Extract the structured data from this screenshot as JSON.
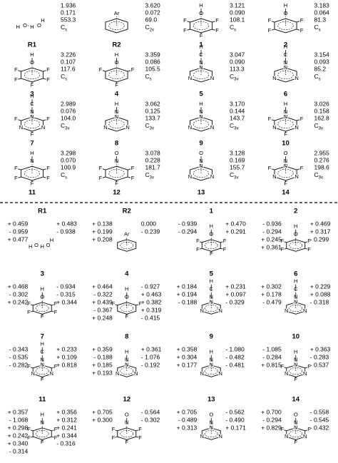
{
  "top_panel": {
    "value_colors": [
      "#3a9a2a",
      "#2a4fd0",
      "#e0261b"
    ],
    "molecules": [
      {
        "label": "R1",
        "values": [
          "1.936",
          "0.171",
          "553.3"
        ],
        "point_group": "C",
        "point_group_sub": "s",
        "ring": null,
        "chain": [
          "H",
          "O",
          "H",
          "O",
          "H"
        ],
        "above": []
      },
      {
        "label": "R2",
        "values": [
          "3.620",
          "0.072",
          "69.0"
        ],
        "point_group": "C",
        "point_group_sub": "2v",
        "ring": [
          null,
          null,
          null,
          null,
          null,
          null
        ],
        "above": [
          "Ar"
        ]
      },
      {
        "label": "1",
        "values": [
          "3.121",
          "0.090",
          "108.1"
        ],
        "point_group": "C",
        "point_group_sub": "s",
        "ring": [
          null,
          "F",
          "F",
          "F",
          "F",
          "F"
        ],
        "above": [
          "O",
          "H"
        ]
      },
      {
        "label": "2",
        "values": [
          "3.183",
          "0.064",
          "81.3"
        ],
        "point_group": "C",
        "point_group_sub": "s",
        "ring": [
          null,
          "F",
          "F",
          null,
          "F",
          "F"
        ],
        "above": [
          "O",
          "H"
        ]
      },
      {
        "label": "3",
        "values": [
          "3.226",
          "0.107",
          "117.6"
        ],
        "point_group": "C",
        "point_group_sub": "s",
        "ring": [
          null,
          "F",
          "F",
          "F",
          "F",
          "F"
        ],
        "above": [
          "O",
          "H"
        ]
      },
      {
        "label": "4",
        "values": [
          "3.359",
          "0.086",
          "105.5"
        ],
        "point_group": "C",
        "point_group_sub": "s",
        "ring": [
          null,
          "F",
          null,
          "F",
          null,
          "F"
        ],
        "above": [
          "O",
          "H"
        ]
      },
      {
        "label": "5",
        "values": [
          "3.047",
          "0.090",
          "113.3"
        ],
        "point_group": "C",
        "point_group_sub": "3v",
        "ring": [
          "N",
          null,
          "N",
          null,
          "N",
          null
        ],
        "above": [
          "N",
          "C",
          "H"
        ]
      },
      {
        "label": "6",
        "values": [
          "3.154",
          "0.093",
          "85.2"
        ],
        "point_group": "C",
        "point_group_sub": "s",
        "ring": [
          "N",
          null,
          "N",
          null,
          "N",
          null
        ],
        "above": [
          "N",
          "C",
          "H"
        ]
      },
      {
        "label": "7",
        "values": [
          "2.989",
          "0.076",
          "104.0"
        ],
        "point_group": "C",
        "point_group_sub": "3v",
        "ring": [
          "N",
          "F",
          "N",
          "F",
          "N",
          "F"
        ],
        "above": [
          "N",
          "C",
          "H"
        ]
      },
      {
        "label": "8",
        "values": [
          "3.062",
          "0.125",
          "133.7"
        ],
        "point_group": "C",
        "point_group_sub": "3v",
        "ring": [
          "N",
          null,
          "N",
          null,
          "N",
          null
        ],
        "above": [
          "N",
          "H"
        ]
      },
      {
        "label": "9",
        "values": [
          "3.170",
          "0.144",
          "143.7"
        ],
        "point_group": "C",
        "point_group_sub": "3v",
        "ring": [
          "N",
          null,
          "N",
          null,
          "N",
          null
        ],
        "above": [
          "N",
          "H"
        ]
      },
      {
        "label": "10",
        "values": [
          "3.026",
          "0.158",
          "162.8"
        ],
        "point_group": "C",
        "point_group_sub": "3v",
        "ring": [
          "N",
          "F",
          "N",
          "F",
          "N",
          "F"
        ],
        "above": [
          "N",
          "H"
        ]
      },
      {
        "label": "11",
        "values": [
          "3.298",
          "0.070",
          "100.9"
        ],
        "point_group": "C",
        "point_group_sub": "s",
        "ring": [
          null,
          "F",
          "F",
          "F",
          "F",
          "F"
        ],
        "above": [
          "N",
          "H"
        ]
      },
      {
        "label": "12",
        "values": [
          "3.078",
          "0.228",
          "181.7"
        ],
        "point_group": "C",
        "point_group_sub": "3v",
        "ring": [
          null,
          "F",
          "F",
          "F",
          "F",
          "F"
        ],
        "above": [
          "N",
          "O"
        ]
      },
      {
        "label": "13",
        "values": [
          "3.128",
          "0.169",
          "155.7"
        ],
        "point_group": "C",
        "point_group_sub": "3v",
        "ring": [
          "N",
          null,
          "N",
          null,
          "N",
          null
        ],
        "above": [
          "N",
          "O"
        ]
      },
      {
        "label": "14",
        "values": [
          "2.955",
          "0.276",
          "198.6"
        ],
        "point_group": "C",
        "point_group_sub": "3v",
        "ring": [
          "N",
          "F",
          "N",
          "F",
          "N",
          "F"
        ],
        "above": [
          "N",
          "O"
        ]
      }
    ]
  },
  "bottom_panel": {
    "molecules": [
      {
        "label": "R1",
        "charges": [
          {
            "text": "+ 0.459",
            "color": "#000000"
          },
          {
            "text": "+ 0.483",
            "color": "#000000"
          },
          {
            "text": "- 0.959",
            "color": "#e0261b"
          },
          {
            "text": "- 0.938",
            "color": "#e0261b"
          },
          {
            "text": "+ 0.477",
            "color": "#000000"
          }
        ]
      },
      {
        "label": "R2",
        "charges": [
          {
            "text": "+ 0.138",
            "color": "#3a9a2a"
          },
          {
            "text": "0.000",
            "color": "#d9661a"
          },
          {
            "text": "+ 0.199",
            "color": "#000000"
          },
          {
            "text": "- 0.239",
            "color": "#3a9a2a"
          },
          {
            "text": "+ 0.208",
            "color": "#000000"
          }
        ]
      },
      {
        "label": "1",
        "charges": [
          {
            "text": "- 0.939",
            "color": "#e0261b"
          },
          {
            "text": "+ 0.470",
            "color": "#000000"
          },
          {
            "text": "- 0.294",
            "color": "#3b8fd4"
          },
          {
            "text": "+ 0.291",
            "color": "#3a9a2a"
          }
        ]
      },
      {
        "label": "2",
        "charges": [
          {
            "text": "- 0.936",
            "color": "#e0261b"
          },
          {
            "text": "+ 0.469",
            "color": "#000000"
          },
          {
            "text": "- 0.294",
            "color": "#3b8fd4"
          },
          {
            "text": "+ 0.317",
            "color": "#3a9a2a"
          },
          {
            "text": "+ 0.245",
            "color": "#000000"
          },
          {
            "text": "- 0.299",
            "color": "#3b8fd4"
          },
          {
            "text": "+ 0.361",
            "color": "#3a9a2a"
          }
        ]
      },
      {
        "label": "3",
        "charges": [
          {
            "text": "+ 0.468",
            "color": "#000000"
          },
          {
            "text": "- 0.934",
            "color": "#e0261b"
          },
          {
            "text": "- 0.302",
            "color": "#3a9a2a"
          },
          {
            "text": "- 0.315",
            "color": "#3b8fd4"
          },
          {
            "text": "+ 0.242",
            "color": "#000000"
          },
          {
            "text": "+ 0.344",
            "color": "#3a9a2a"
          }
        ]
      },
      {
        "label": "4",
        "charges": [
          {
            "text": "+ 0.464",
            "color": "#000000"
          },
          {
            "text": "- 0.927",
            "color": "#e0261b"
          },
          {
            "text": "- 0.322",
            "color": "#3b8fd4"
          },
          {
            "text": "+ 0.463",
            "color": "#000000"
          },
          {
            "text": "+ 0.439",
            "color": "#3a9a2a"
          },
          {
            "text": "+ 0.382",
            "color": "#3a9a2a"
          },
          {
            "text": "- 0.367",
            "color": "#3a9a2a"
          },
          {
            "text": "+ 0.319",
            "color": "#3a9a2a"
          },
          {
            "text": "+ 0.248",
            "color": "#000000"
          },
          {
            "text": "- 0.415",
            "color": "#3b8fd4"
          }
        ]
      },
      {
        "label": "5",
        "charges": [
          {
            "text": "+ 0.184",
            "color": "#3a9a2a"
          },
          {
            "text": "+ 0.231",
            "color": "#000000"
          },
          {
            "text": "+ 0.194",
            "color": "#000000"
          },
          {
            "text": "+ 0.097",
            "color": "#3a9a2a"
          },
          {
            "text": "- 0.188",
            "color": "#2a4fd0"
          },
          {
            "text": "- 0.329",
            "color": "#2a4fd0"
          }
        ]
      },
      {
        "label": "6",
        "charges": [
          {
            "text": "+ 0.302",
            "color": "#3a9a2a"
          },
          {
            "text": "+ 0.229",
            "color": "#000000"
          },
          {
            "text": "+ 0.178",
            "color": "#000000"
          },
          {
            "text": "+ 0.088",
            "color": "#3a9a2a"
          },
          {
            "text": "- 0.479",
            "color": "#2a4fd0"
          },
          {
            "text": "- 0.318",
            "color": "#2a4fd0"
          }
        ]
      },
      {
        "label": "7",
        "charges": [
          {
            "text": "- 0.343",
            "color": "#2a4fd0"
          },
          {
            "text": "+ 0.233",
            "color": "#000000"
          },
          {
            "text": "- 0.535",
            "color": "#2a4fd0"
          },
          {
            "text": "+ 0.109",
            "color": "#3a9a2a"
          },
          {
            "text": "- 0.282",
            "color": "#3b8fd4"
          },
          {
            "text": "+ 0.818",
            "color": "#3a9a2a"
          }
        ]
      },
      {
        "label": "8",
        "charges": [
          {
            "text": "+ 0.359",
            "color": "#000000"
          },
          {
            "text": "+ 0.361",
            "color": "#000000"
          },
          {
            "text": "- 0.188",
            "color": "#2a4fd0"
          },
          {
            "text": "- 1.076",
            "color": "#2a4fd0"
          },
          {
            "text": "+ 0.185",
            "color": "#3a9a2a"
          },
          {
            "text": "- 0.192",
            "color": "#2a4fd0"
          },
          {
            "text": "+ 0.193",
            "color": "#000000"
          }
        ]
      },
      {
        "label": "9",
        "charges": [
          {
            "text": "+ 0.358",
            "color": "#000000"
          },
          {
            "text": "- 1.080",
            "color": "#2a4fd0"
          },
          {
            "text": "+ 0.304",
            "color": "#3a9a2a"
          },
          {
            "text": "- 0.482",
            "color": "#2a4fd0"
          },
          {
            "text": "+ 0.177",
            "color": "#000000"
          },
          {
            "text": "- 0.481",
            "color": "#2a4fd0"
          }
        ]
      },
      {
        "label": "10",
        "charges": [
          {
            "text": "- 1.085",
            "color": "#2a4fd0"
          },
          {
            "text": "+ 0.363",
            "color": "#000000"
          },
          {
            "text": "- 0.284",
            "color": "#3b8fd4"
          },
          {
            "text": "- 0.283",
            "color": "#3b8fd4"
          },
          {
            "text": "+ 0.815",
            "color": "#3a9a2a"
          },
          {
            "text": "- 0.537",
            "color": "#2a4fd0"
          }
        ]
      },
      {
        "label": "11",
        "charges": [
          {
            "text": "+ 0.357",
            "color": "#000000"
          },
          {
            "text": "+ 0.356",
            "color": "#000000"
          },
          {
            "text": "- 1.068",
            "color": "#2a4fd0"
          },
          {
            "text": "+ 0.312",
            "color": "#3a9a2a"
          },
          {
            "text": "+ 0.298",
            "color": "#3a9a2a"
          },
          {
            "text": "+ 0.241",
            "color": "#000000"
          },
          {
            "text": "+ 0.242",
            "color": "#000000"
          },
          {
            "text": "+ 0.344",
            "color": "#3a9a2a"
          },
          {
            "text": "+ 0.340",
            "color": "#3a9a2a"
          },
          {
            "text": "- 0.316",
            "color": "#3b8fd4"
          },
          {
            "text": "- 0.314",
            "color": "#3b8fd4"
          }
        ]
      },
      {
        "label": "12",
        "charges": [
          {
            "text": "+ 0.705",
            "color": "#2a4fd0"
          },
          {
            "text": "- 0.564",
            "color": "#e0261b"
          },
          {
            "text": "+ 0.300",
            "color": "#3a9a2a"
          },
          {
            "text": "- 0.302",
            "color": "#3b8fd4"
          }
        ]
      },
      {
        "label": "13",
        "charges": [
          {
            "text": "+ 0.705",
            "color": "#2a4fd0"
          },
          {
            "text": "- 0.562",
            "color": "#e0261b"
          },
          {
            "text": "- 0.489",
            "color": "#2a4fd0"
          },
          {
            "text": "- 0.490",
            "color": "#2a4fd0"
          },
          {
            "text": "+ 0.313",
            "color": "#3a9a2a"
          },
          {
            "text": "+ 0.171",
            "color": "#000000"
          }
        ]
      },
      {
        "label": "14",
        "charges": [
          {
            "text": "+ 0.700",
            "color": "#2a4fd0"
          },
          {
            "text": "- 0.558",
            "color": "#e0261b"
          },
          {
            "text": "- 0.294",
            "color": "#3b8fd4"
          },
          {
            "text": "- 0.545",
            "color": "#2a4fd0"
          },
          {
            "text": "+ 0.829",
            "color": "#3a9a2a"
          },
          {
            "text": "- 0.432",
            "color": "#2a4fd0"
          }
        ]
      }
    ]
  }
}
